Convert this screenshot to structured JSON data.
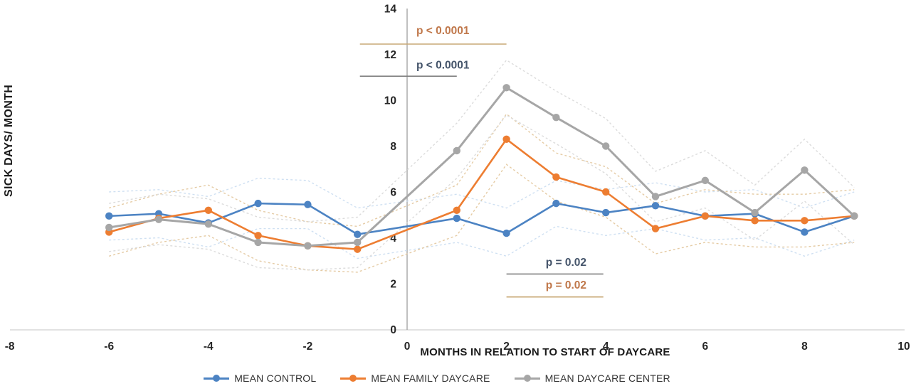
{
  "chart_data": {
    "type": "line",
    "title": "",
    "xlabel": "MONTHS IN RELATION TO START OF DAYCARE",
    "ylabel": "SICK DAYS/ MONTH",
    "xlim": [
      -8,
      10
    ],
    "ylim": [
      0,
      14
    ],
    "x_ticks": [
      -8,
      -6,
      -4,
      -2,
      0,
      2,
      4,
      6,
      8,
      10
    ],
    "y_ticks": [
      0,
      2,
      4,
      6,
      8,
      10,
      12,
      14
    ],
    "grid": false,
    "legend_position": "bottom",
    "x": [
      -6,
      -5,
      -4,
      -3,
      -2,
      -1,
      1,
      2,
      3,
      4,
      5,
      6,
      7,
      8,
      9
    ],
    "series": [
      {
        "name": "MEAN CONTROL",
        "color": "#4C83C3",
        "ci_color": "#CFE0F2",
        "values": [
          4.95,
          5.05,
          4.65,
          5.5,
          5.45,
          4.15,
          4.85,
          4.2,
          5.5,
          5.1,
          5.4,
          4.95,
          5.05,
          4.25,
          4.95
        ],
        "upper": [
          6.0,
          6.1,
          5.8,
          6.6,
          6.5,
          5.3,
          5.9,
          5.3,
          6.5,
          6.1,
          6.4,
          6.0,
          6.1,
          5.3,
          6.0
        ],
        "lower": [
          3.9,
          4.0,
          3.6,
          4.4,
          4.4,
          3.1,
          3.8,
          3.2,
          4.5,
          4.1,
          4.4,
          3.9,
          4.0,
          3.2,
          3.9
        ]
      },
      {
        "name": "MEAN FAMILY DAYCARE",
        "color": "#ED7D31",
        "ci_color": "#E5CBA4",
        "values": [
          4.25,
          4.85,
          5.2,
          4.1,
          3.65,
          3.5,
          5.2,
          8.3,
          6.65,
          6.0,
          4.4,
          4.95,
          4.75,
          4.75,
          4.95
        ],
        "upper": [
          5.3,
          5.9,
          6.3,
          5.2,
          4.7,
          4.5,
          6.3,
          9.4,
          7.7,
          7.1,
          5.5,
          6.1,
          5.9,
          5.9,
          6.1
        ],
        "lower": [
          3.2,
          3.8,
          4.1,
          3.0,
          2.6,
          2.5,
          4.1,
          7.2,
          5.6,
          4.9,
          3.3,
          3.8,
          3.6,
          3.6,
          3.8
        ]
      },
      {
        "name": "MEAN DAYCARE CENTER",
        "color": "#A6A6A6",
        "ci_color": "#DCDCDC",
        "values": [
          4.45,
          4.8,
          4.6,
          3.8,
          3.65,
          3.8,
          7.8,
          10.55,
          9.25,
          8.0,
          5.8,
          6.5,
          5.1,
          6.95,
          4.95
        ],
        "upper": [
          5.5,
          5.9,
          5.7,
          4.9,
          4.7,
          4.9,
          9.0,
          11.75,
          10.4,
          9.2,
          6.9,
          7.8,
          6.3,
          8.3,
          6.2
        ],
        "lower": [
          3.4,
          3.7,
          3.5,
          2.7,
          2.6,
          2.7,
          6.6,
          9.35,
          8.1,
          6.8,
          4.7,
          5.3,
          3.9,
          5.6,
          3.7
        ]
      }
    ],
    "annotations": [
      {
        "text": "p < 0.0001",
        "text_color": "#C0784B",
        "line_color": "#C9A876",
        "text_month": 0.72,
        "text_value": 13.05,
        "line_from_month": -0.95,
        "line_to_month": 2.0,
        "line_value": 12.45
      },
      {
        "text": "p < 0.0001",
        "text_color": "#44546A",
        "line_color": "#808080",
        "text_month": 0.72,
        "text_value": 11.55,
        "line_from_month": -0.95,
        "line_to_month": 1.0,
        "line_value": 11.05
      },
      {
        "text": "p = 0.02",
        "text_color": "#44546A",
        "line_color": "#808080",
        "text_month": 3.2,
        "text_value": 2.95,
        "line_from_month": 2.0,
        "line_to_month": 3.95,
        "line_value": 2.42
      },
      {
        "text": "p = 0.02",
        "text_color": "#C0784B",
        "line_color": "#C9A876",
        "text_month": 3.2,
        "text_value": 1.95,
        "line_from_month": 2.0,
        "line_to_month": 3.95,
        "line_value": 1.42
      }
    ],
    "axis_colors": {
      "x_axis_line": "#D9D9D9",
      "y_axis_line": "#A6A6A6",
      "tick_label": "#262626"
    }
  }
}
